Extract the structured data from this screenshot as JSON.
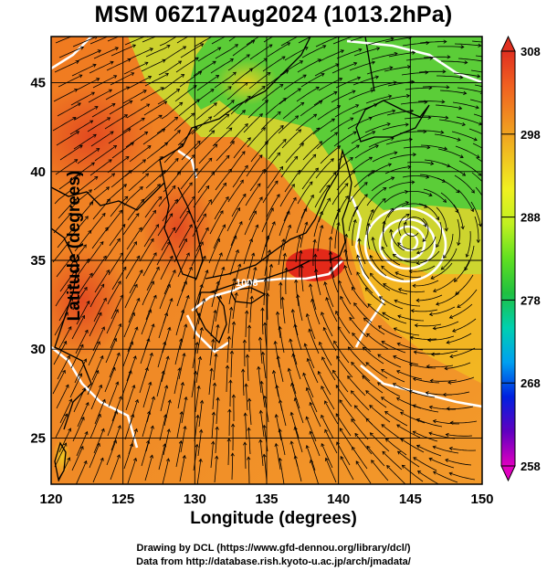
{
  "title": "MSM 06Z17Aug2024 (1013.2hPa)",
  "x_axis": {
    "label": "Longitude (degrees)",
    "ticks": [
      "120",
      "125",
      "130",
      "135",
      "140",
      "145",
      "150"
    ]
  },
  "y_axis": {
    "label": "Latitude  (degrees)",
    "ticks": [
      "25",
      "30",
      "35",
      "40",
      "45"
    ]
  },
  "colorbar": {
    "ticks": [
      "258",
      "268",
      "278",
      "288",
      "298",
      "308"
    ],
    "colors": [
      "#e000c0",
      "#6000c0",
      "#0020e0",
      "#00a0f0",
      "#00d0b0",
      "#20c040",
      "#60e020",
      "#c0f020",
      "#f0f020",
      "#f0c020",
      "#f09020",
      "#f06020",
      "#e03020"
    ]
  },
  "map": {
    "lon_range": [
      120,
      150
    ],
    "lat_range": [
      22.4,
      47.6
    ],
    "contour_label": "1008",
    "cyclone_center": {
      "lon": 145.2,
      "lat": 36.8
    }
  },
  "credits": {
    "line1": "Drawing by DCL (https://www.gfd-dennou.org/library/dcl/)",
    "line2": "Data from http://database.rish.kyoto-u.ac.jp/arch/jmadata/"
  }
}
